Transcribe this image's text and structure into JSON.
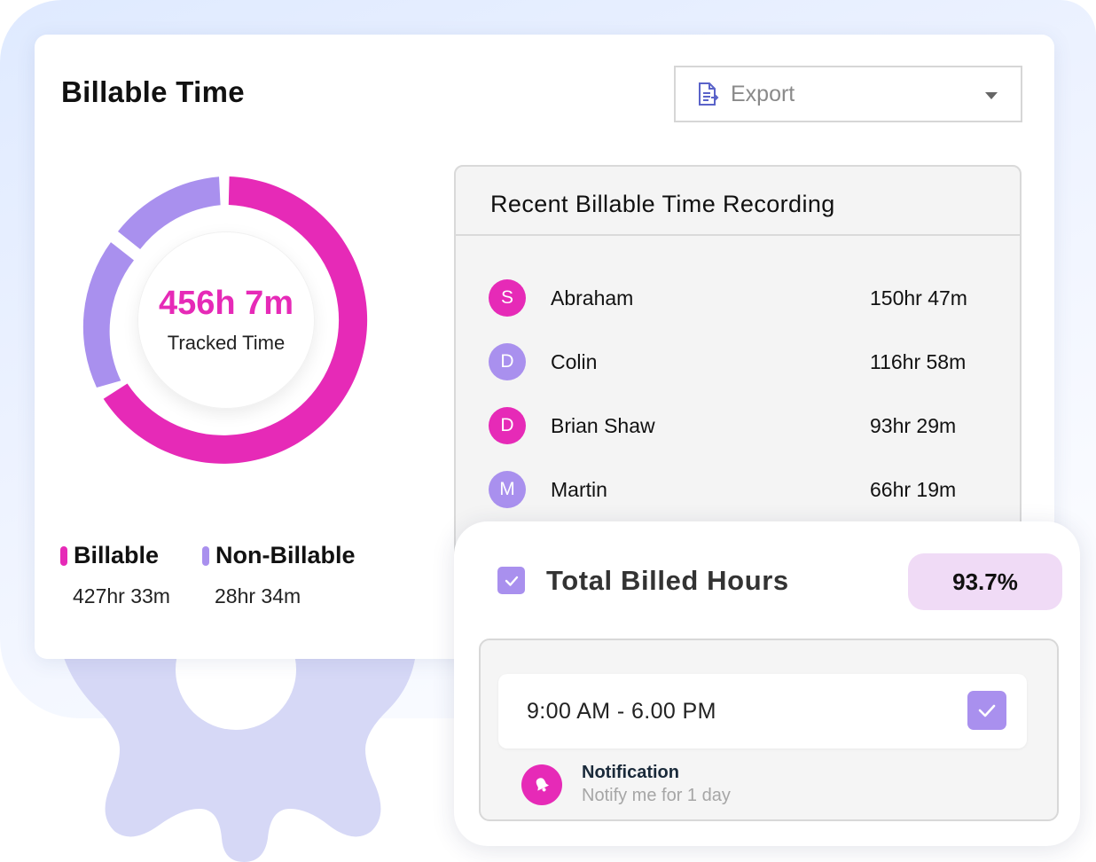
{
  "card": {
    "title": "Billable Time"
  },
  "export": {
    "label": "Export",
    "icon": "document-export-icon"
  },
  "donut": {
    "value": "456h 7m",
    "label": "Tracked Time",
    "colors": {
      "billable": "#e62ab7",
      "non_billable": "#a990ee"
    }
  },
  "legend": [
    {
      "name": "Billable",
      "value": "427hr 33m",
      "color": "#e62ab7"
    },
    {
      "name": "Non-Billable",
      "value": "28hr 34m",
      "color": "#a990ee"
    }
  ],
  "recent": {
    "title": "Recent Billable Time Recording",
    "rows": [
      {
        "initial": "S",
        "name": "Abraham",
        "hours": "150hr 47m",
        "color": "#e62ab7"
      },
      {
        "initial": "D",
        "name": "Colin",
        "hours": "116hr 58m",
        "color": "#a990ee"
      },
      {
        "initial": "D",
        "name": "Brian Shaw",
        "hours": "93hr 29m",
        "color": "#e62ab7"
      },
      {
        "initial": "M",
        "name": "Martin",
        "hours": "66hr 19m",
        "color": "#a990ee"
      }
    ]
  },
  "total": {
    "title": "Total Billed Hours",
    "percent": "93.7%",
    "checked": true,
    "time_range": "9:00 AM - 6.00 PM",
    "time_checked": true,
    "notification": {
      "title": "Notification",
      "subtitle": "Notify me for 1 day",
      "icon": "bell-icon"
    }
  }
}
